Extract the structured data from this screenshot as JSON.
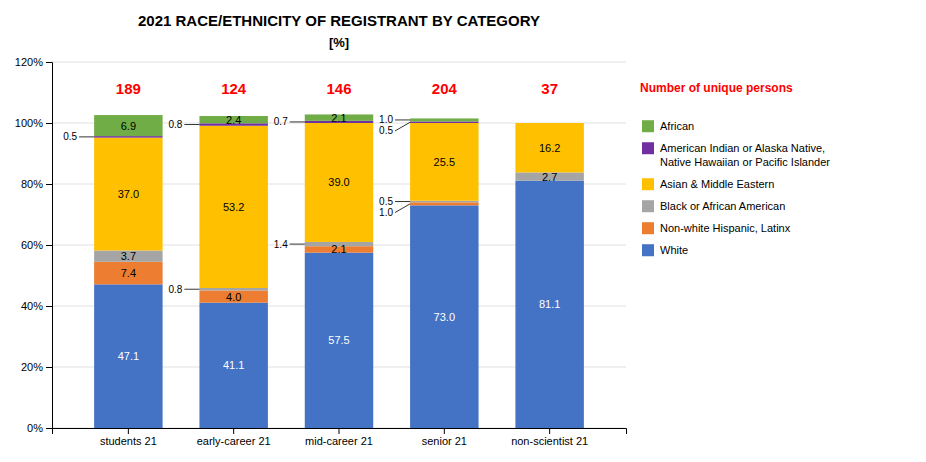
{
  "chart_data": {
    "type": "bar",
    "stacked": true,
    "title": "2021 RACE/ETHNICITY OF REGISTRANT BY CATEGORY",
    "subtitle": "[%]",
    "categories": [
      "students 21",
      "early-career 21",
      "mid-career 21",
      "senior 21",
      "non-scientist 21"
    ],
    "series": [
      {
        "name": "White",
        "color": "#4472C4",
        "values": [
          47.1,
          41.1,
          57.5,
          73.0,
          81.1
        ],
        "value_labels": [
          "47.1",
          "41.1",
          "57.5",
          "73.0",
          "81.1"
        ]
      },
      {
        "name": "Non-white Hispanic, Latinx",
        "color": "#ED7D31",
        "values": [
          7.4,
          4.0,
          2.1,
          1.0,
          0.0
        ],
        "value_labels": [
          "7.4",
          "4.0",
          "2.1",
          "1.0",
          null
        ]
      },
      {
        "name": "Black or African American",
        "color": "#A5A5A5",
        "values": [
          3.7,
          0.8,
          1.4,
          0.5,
          2.7
        ],
        "value_labels": [
          "3.7",
          "0.8",
          "1.4",
          "0.5",
          "2.7"
        ]
      },
      {
        "name": "Asian & Middle Eastern",
        "color": "#FFC000",
        "values": [
          37.0,
          53.2,
          39.0,
          25.5,
          16.2
        ],
        "value_labels": [
          "37.0",
          "53.2",
          "39.0",
          "25.5",
          "16.2"
        ]
      },
      {
        "name": "American Indian or Alaska Native,\nNative Hawaiian or Pacific Islander",
        "color": "#7030A0",
        "values": [
          0.5,
          0.8,
          0.7,
          0.5,
          0.0
        ],
        "value_labels": [
          "0.5",
          "0.8",
          "0.7",
          "0.5",
          null
        ]
      },
      {
        "name": "African",
        "color": "#70AD47",
        "values": [
          6.9,
          2.4,
          2.1,
          1.0,
          0.0
        ],
        "value_labels": [
          "6.9",
          "2.4",
          "2.1",
          "1.0",
          null
        ]
      }
    ],
    "unique_persons": {
      "label": "Number of unique persons",
      "color": "#FF0000",
      "values": [
        189,
        124,
        146,
        204,
        37
      ]
    },
    "ylim": [
      0,
      120
    ],
    "yticks": [
      {
        "value": 0,
        "label": "0%"
      },
      {
        "value": 20,
        "label": "20%"
      },
      {
        "value": 40,
        "label": "40%"
      },
      {
        "value": 60,
        "label": "60%"
      },
      {
        "value": 80,
        "label": "80%"
      },
      {
        "value": 100,
        "label": "100%"
      },
      {
        "value": 120,
        "label": "120%"
      }
    ],
    "grid": true,
    "legend": "right",
    "data_labels": true
  }
}
